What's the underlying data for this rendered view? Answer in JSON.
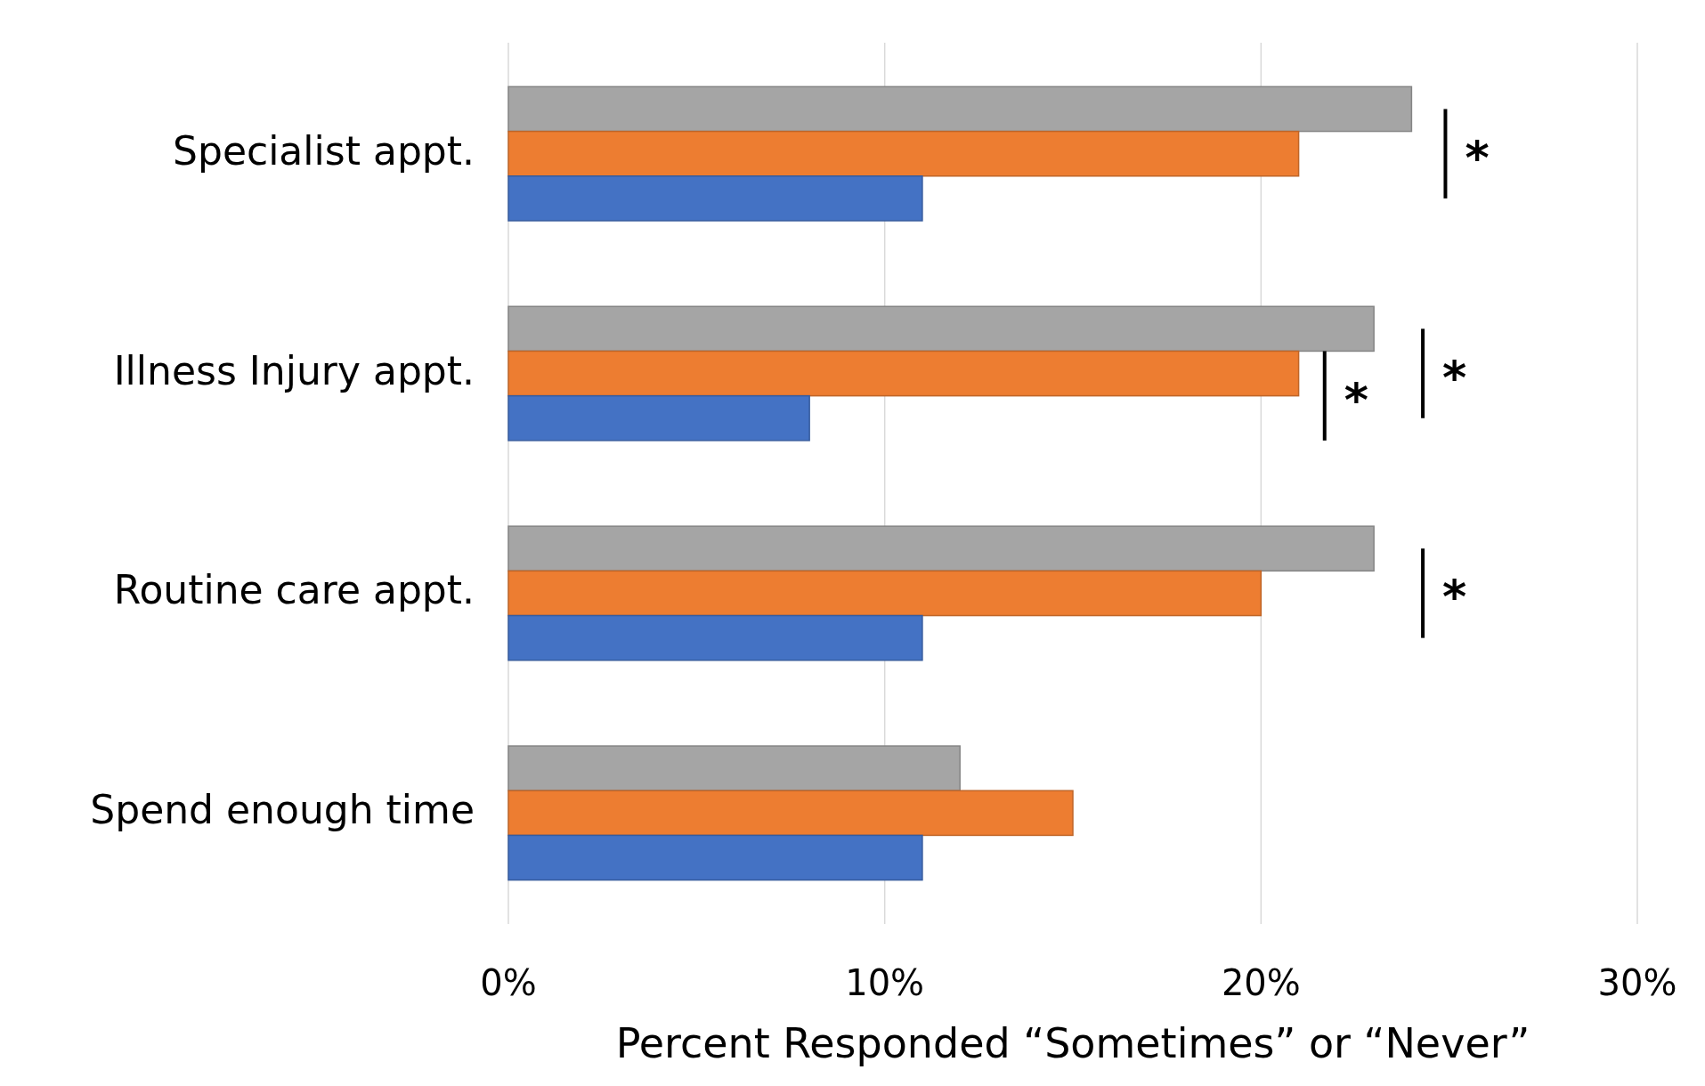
{
  "chart_data": {
    "type": "bar",
    "orientation": "horizontal",
    "xlabel": "Percent Responded “Sometimes” or “Never”",
    "categories": [
      "Specialist appt.",
      "Illness Injury appt.",
      "Routine care appt.",
      "Spend enough time"
    ],
    "series": [
      {
        "color": "#a5a5a5",
        "values": [
          24,
          23,
          23,
          12
        ]
      },
      {
        "color": "#ed7d31",
        "values": [
          21,
          21,
          20,
          15
        ]
      },
      {
        "color": "#4472c4",
        "values": [
          11,
          8,
          11,
          11
        ]
      }
    ],
    "xlim": [
      0,
      30
    ],
    "xticks": [
      {
        "value": 0,
        "label": "0%"
      },
      {
        "value": 10,
        "label": "10%"
      },
      {
        "value": 20,
        "label": "20%"
      },
      {
        "value": 30,
        "label": "30%"
      }
    ],
    "grid": "x",
    "annotations": [
      "*",
      "*",
      "*",
      "*"
    ]
  }
}
